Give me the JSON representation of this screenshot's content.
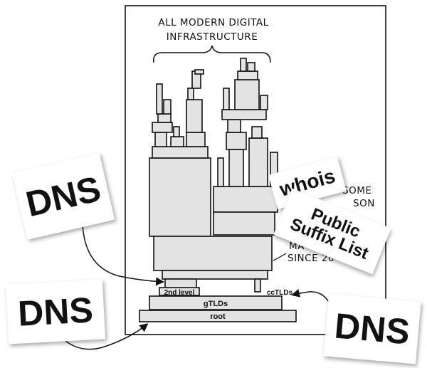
{
  "comic": {
    "title_line1": "ALL MODERN DIGITAL",
    "title_line2": "INFRASTRUCTURE",
    "note_line1": "SOME",
    "note_line2": "SON",
    "note_line3": "MA",
    "note_line4": "SINCE 20"
  },
  "labels": {
    "root": "root",
    "gtlds": "gTLDs",
    "cctlds": "ccTLDs",
    "second_level": "2nd level"
  },
  "cards": {
    "dns_top_left": "DNS",
    "dns_bottom_left": "DNS",
    "dns_right": "DNS",
    "whois": "whois",
    "psl_line1": "Public",
    "psl_line2": "Suffix List"
  },
  "colors": {
    "ink": "#111111",
    "block_fill": "#e3e3e3",
    "card": "#ffffff"
  }
}
